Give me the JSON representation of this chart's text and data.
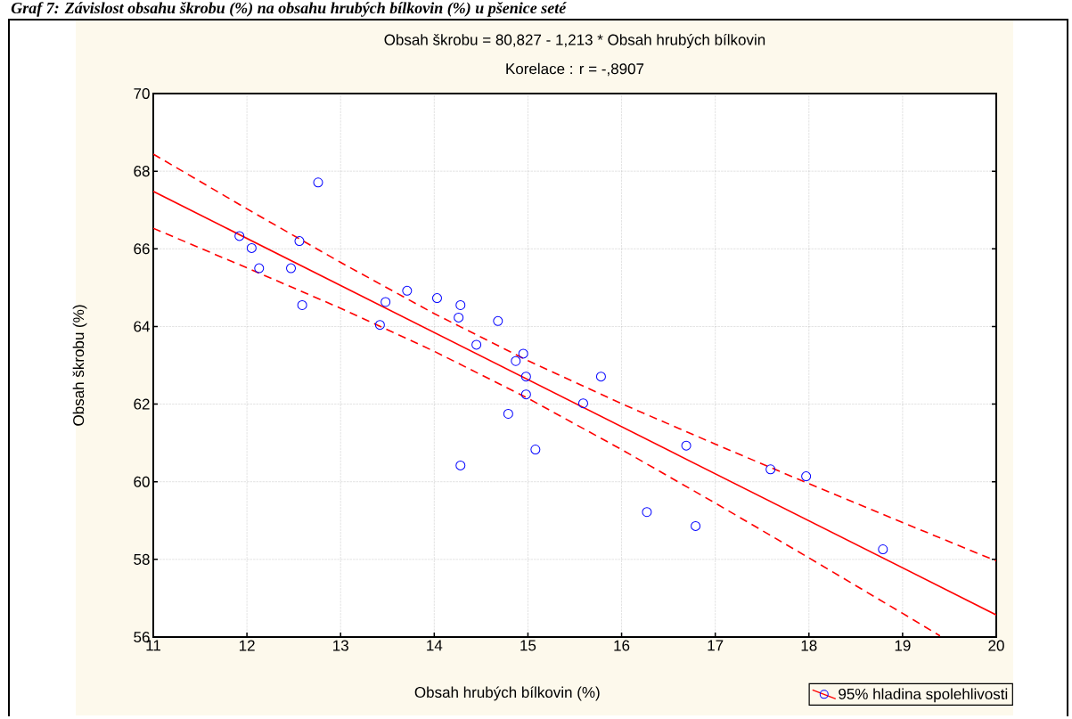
{
  "chart_data": {
    "type": "scatter",
    "title": "Graf 7: Závislost obsahu škrobu (%) na obsahu hrubých bílkovin (%) u pšenice seté",
    "subtitle": "Obsah škrobu = 80,827 - 1,213  * Obsah hrubých bílkovin",
    "annotations": [
      "Korelace :   r = -,8907"
    ],
    "xlabel": "Obsah hrubých bílkovin (%)",
    "ylabel": "Obsah škrobu (%)",
    "xlim": [
      11,
      20
    ],
    "xticks": [
      11,
      12,
      13,
      14,
      15,
      16,
      17,
      18,
      19,
      20
    ],
    "ylim": [
      56,
      70
    ],
    "yticks": [
      56,
      58,
      60,
      62,
      64,
      66,
      68,
      70
    ],
    "grid": true,
    "legend": "bottom right",
    "series": [
      {
        "type": "scatter",
        "name": "95% hladina spolehlivosti",
        "color": "#0000ff",
        "marker": "circle",
        "x": [
          11.92,
          12.05,
          12.13,
          12.47,
          12.56,
          12.59,
          12.76,
          13.42,
          13.48,
          13.71,
          14.03,
          14.28,
          14.26,
          14.68,
          14.45,
          14.95,
          14.87,
          14.98,
          14.98,
          15.59,
          15.78,
          14.79,
          15.08,
          14.28,
          16.69,
          16.27,
          16.79,
          17.59,
          17.97,
          18.79
        ],
        "values": [
          66.33,
          66.02,
          65.5,
          65.5,
          66.2,
          64.55,
          67.71,
          64.04,
          64.63,
          64.92,
          64.73,
          64.55,
          64.23,
          64.14,
          63.53,
          63.3,
          63.11,
          62.71,
          62.25,
          62.02,
          62.71,
          61.75,
          60.83,
          60.42,
          60.93,
          59.22,
          58.86,
          60.32,
          60.14,
          58.26
        ]
      },
      {
        "type": "line",
        "color": "#ff0000",
        "x": [
          11,
          20
        ],
        "values": [
          67.48,
          56.57
        ]
      },
      {
        "type": "line",
        "color": "#ff0000",
        "line_style": "dashed",
        "x": [
          11,
          12,
          13,
          14,
          15,
          16,
          17,
          18,
          19,
          20
        ],
        "values": [
          68.44,
          67.03,
          65.65,
          64.33,
          63.12,
          62.01,
          60.97,
          59.95,
          58.95,
          57.96
        ]
      },
      {
        "type": "line",
        "color": "#ff0000",
        "line_style": "dashed",
        "x": [
          11,
          12,
          13,
          14,
          15,
          16,
          17,
          18,
          19,
          19.4
        ],
        "values": [
          66.53,
          65.51,
          64.47,
          63.36,
          62.15,
          60.83,
          59.45,
          58.04,
          56.61,
          56.03
        ]
      }
    ]
  }
}
